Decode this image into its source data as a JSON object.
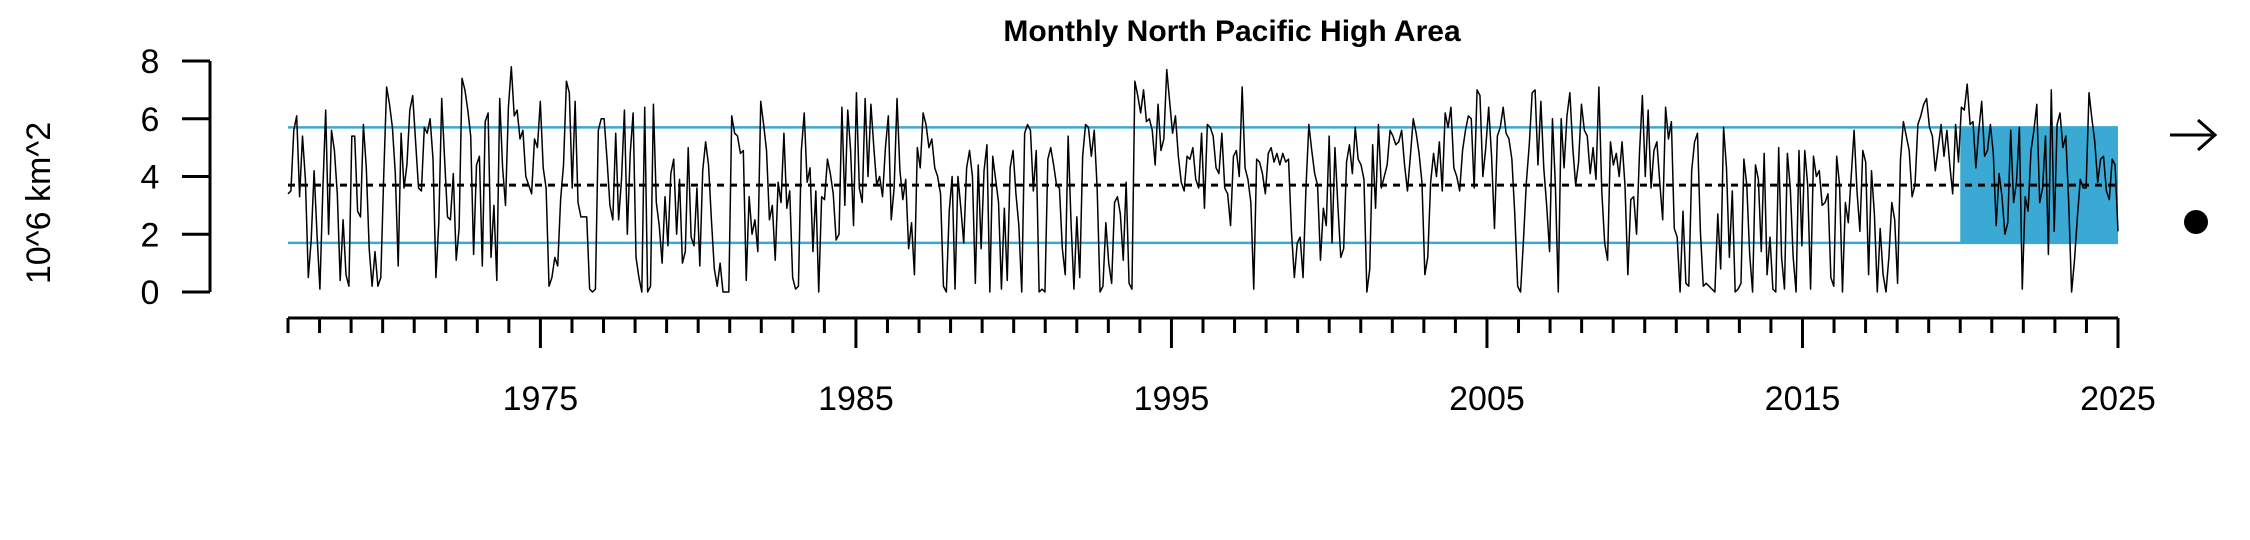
{
  "chart_data": {
    "type": "line",
    "title": "Monthly North Pacific High Area",
    "ylabel": "10^6 km^2",
    "xlabel": "",
    "xlim": [
      1967,
      2025
    ],
    "ylim": [
      0,
      8
    ],
    "x_ticks": [
      1975,
      1985,
      1995,
      2005,
      2015,
      2025
    ],
    "y_ticks": [
      0,
      2,
      4,
      6,
      8
    ],
    "mean": 3.7,
    "upper_band": 5.7,
    "lower_band": 1.7,
    "highlight_period": [
      2020,
      2025
    ],
    "colors": {
      "line": "#000000",
      "band": "#3aa9d4",
      "mean": "#000000"
    },
    "trend_indicator": "right-arrow-icon",
    "mean_indicator": "filled-circle-icon",
    "series": [
      {
        "x_start": 1967.0,
        "x_step": 0.08333,
        "values": [
          3.4,
          3.5,
          5.6,
          6.1,
          3.3,
          5.4,
          3.9,
          0.5,
          1.8,
          4.2,
          2.0,
          0.1,
          3.5,
          6.3,
          2.0,
          5.6,
          4.9,
          3.4,
          0.4,
          2.5,
          0.6,
          0.2,
          5.4,
          5.4,
          2.8,
          2.6,
          5.8,
          4.3,
          1.5,
          0.2,
          1.4,
          0.2,
          0.5,
          4.0,
          7.1,
          6.5,
          5.7,
          4.1,
          0.9,
          5.5,
          3.6,
          4.4,
          6.3,
          6.8,
          5.2,
          3.6,
          3.5,
          5.7,
          5.5,
          6.0,
          4.6,
          0.5,
          2.4,
          6.7,
          4.6,
          2.6,
          2.5,
          4.1,
          1.1,
          2.2,
          7.4,
          7.0,
          6.3,
          5.4,
          1.3,
          4.4,
          4.7,
          0.9,
          5.9,
          6.2,
          1.2,
          3.0,
          0.4,
          6.7,
          4.3,
          3.0,
          6.4,
          7.8,
          6.1,
          6.3,
          5.3,
          5.6,
          4.0,
          3.7,
          3.4,
          5.3,
          5.0,
          6.6,
          4.3,
          3.6,
          0.2,
          0.5,
          1.2,
          0.9,
          3.2,
          4.4,
          7.3,
          6.9,
          3.6,
          6.6,
          3.1,
          2.6,
          2.6,
          2.6,
          0.1,
          0.0,
          0.1,
          5.6,
          6.0,
          6.0,
          4.6,
          3.0,
          2.5,
          5.5,
          2.5,
          3.9,
          6.3,
          2.0,
          4.8,
          6.2,
          1.2,
          0.5,
          0.0,
          6.4,
          0.0,
          0.2,
          6.5,
          3.1,
          2.3,
          1.0,
          3.3,
          1.6,
          4.1,
          4.6,
          2.0,
          3.9,
          1.0,
          1.4,
          5.0,
          1.9,
          1.6,
          3.6,
          0.9,
          4.2,
          5.2,
          4.4,
          2.5,
          0.8,
          0.2,
          1.0,
          0.0,
          0.0,
          0.0,
          6.1,
          5.5,
          5.4,
          4.8,
          4.9,
          0.4,
          3.3,
          2.0,
          2.5,
          1.4,
          6.6,
          5.8,
          4.9,
          2.5,
          3.0,
          1.1,
          3.8,
          3.1,
          5.5,
          2.9,
          3.5,
          0.5,
          0.1,
          0.2,
          4.9,
          6.2,
          3.8,
          4.3,
          1.4,
          3.5,
          0.0,
          3.3,
          3.2,
          4.6,
          4.1,
          3.4,
          1.8,
          2.0,
          6.4,
          3.0,
          6.3,
          4.9,
          2.3,
          6.9,
          3.6,
          3.1,
          6.7,
          4.0,
          6.5,
          5.0,
          3.7,
          4.0,
          3.3,
          5.0,
          6.1,
          2.5,
          3.6,
          6.7,
          4.2,
          3.2,
          3.9,
          1.5,
          2.4,
          0.6,
          5.0,
          4.3,
          6.2,
          5.8,
          5.0,
          5.3,
          4.3,
          4.0,
          3.4,
          0.2,
          0.0,
          2.8,
          4.0,
          0.1,
          4.0,
          2.9,
          1.7,
          4.3,
          4.9,
          4.0,
          0.3,
          4.4,
          1.5,
          4.2,
          5.1,
          0.0,
          4.7,
          3.9,
          3.1,
          0.1,
          2.9,
          0.4,
          4.3,
          4.9,
          3.4,
          2.3,
          0.0,
          5.5,
          5.8,
          5.6,
          3.5,
          4.9,
          0.0,
          0.1,
          0.0,
          4.6,
          5.0,
          4.4,
          3.7,
          3.6,
          1.5,
          0.6,
          5.4,
          2.4,
          0.1,
          2.6,
          0.5,
          4.7,
          5.8,
          5.7,
          4.7,
          5.6,
          3.6,
          0.0,
          0.2,
          2.4,
          1.0,
          0.3,
          3.1,
          3.3,
          2.7,
          1.1,
          3.8,
          0.3,
          0.1,
          7.3,
          6.8,
          6.2,
          7.0,
          5.9,
          6.0,
          5.6,
          4.4,
          6.5,
          4.9,
          5.3,
          7.7,
          6.6,
          5.5,
          6.1,
          4.7,
          3.8,
          3.5,
          4.7,
          4.6,
          5.0,
          3.9,
          3.6,
          5.5,
          2.9,
          5.8,
          5.7,
          5.4,
          4.3,
          4.1,
          5.5,
          3.6,
          3.4,
          2.3,
          4.7,
          4.9,
          4.0,
          7.1,
          4.3,
          3.9,
          3.1,
          0.1,
          4.6,
          4.5,
          4.1,
          3.4,
          4.8,
          5.0,
          4.5,
          4.8,
          4.4,
          4.8,
          4.5,
          4.6,
          2.1,
          0.5,
          1.7,
          1.9,
          0.5,
          3.6,
          5.8,
          4.9,
          4.1,
          3.7,
          1.1,
          2.9,
          2.3,
          5.4,
          1.7,
          5.0,
          3.0,
          1.2,
          1.5,
          4.5,
          5.1,
          4.1,
          5.7,
          4.6,
          4.4,
          3.9,
          0.0,
          0.8,
          5.1,
          2.9,
          5.8,
          3.6,
          4.0,
          4.4,
          5.6,
          5.4,
          5.1,
          5.2,
          5.6,
          4.4,
          3.5,
          4.7,
          6.0,
          5.5,
          4.8,
          3.8,
          0.6,
          1.2,
          3.8,
          4.8,
          4.0,
          5.2,
          3.5,
          6.2,
          5.7,
          6.4,
          4.3,
          4.0,
          3.5,
          4.9,
          5.6,
          6.1,
          6.0,
          3.6,
          7.0,
          6.8,
          4.0,
          5.0,
          6.4,
          4.7,
          2.2,
          5.4,
          5.7,
          6.4,
          5.5,
          5.3,
          4.6,
          2.7,
          0.2,
          0.0,
          1.8,
          3.8,
          5.1,
          6.9,
          7.0,
          4.4,
          6.6,
          4.3,
          3.0,
          1.4,
          6.0,
          3.7,
          0.0,
          6.0,
          4.3,
          6.1,
          6.9,
          5.0,
          3.7,
          4.5,
          6.5,
          5.6,
          5.4,
          4.1,
          5.0,
          3.9,
          7.1,
          3.5,
          1.7,
          1.1,
          5.2,
          4.4,
          4.8,
          4.0,
          5.2,
          3.7,
          0.6,
          3.2,
          3.3,
          2.0,
          4.8,
          6.8,
          4.0,
          6.3,
          3.6,
          4.9,
          5.2,
          3.8,
          2.5,
          6.4,
          5.3,
          5.9,
          2.2,
          1.9,
          0.0,
          2.8,
          0.3,
          0.2,
          4.2,
          5.2,
          5.5,
          2.1,
          0.2,
          0.3,
          0.2,
          0.1,
          0.0,
          2.7,
          0.8,
          5.7,
          4.3,
          1.2,
          3.5,
          0.0,
          0.1,
          0.3,
          4.6,
          3.7,
          1.3,
          0.0,
          4.4,
          3.9,
          1.4,
          4.8,
          0.6,
          1.9,
          0.1,
          0.0,
          5.0,
          1.2,
          0.1,
          4.8,
          3.6,
          1.2,
          0.0,
          4.9,
          1.6,
          4.9,
          3.7,
          0.1,
          4.7,
          4.0,
          4.2,
          3.0,
          3.1,
          3.4,
          0.5,
          0.2,
          4.7,
          3.7,
          0.0,
          3.1,
          2.4,
          4.0,
          5.6,
          3.5,
          2.1,
          4.9,
          4.5,
          0.6,
          4.2,
          2.7,
          0.0,
          2.2,
          0.6,
          0.0,
          1.2,
          3.1,
          2.5,
          0.3,
          4.6,
          5.9,
          5.4,
          4.9,
          3.3,
          3.7,
          5.8,
          6.1,
          6.5,
          6.7,
          5.7,
          5.4,
          4.2,
          5.0,
          5.8,
          4.7,
          5.6,
          4.4,
          3.4,
          5.8,
          4.5,
          6.4,
          6.3,
          7.2,
          5.8,
          5.9,
          4.3,
          5.6,
          6.6,
          4.7,
          4.9,
          5.8,
          4.8,
          2.3,
          4.1,
          3.3,
          2.0,
          2.4,
          5.6,
          3.1,
          3.8,
          5.7,
          0.1,
          3.3,
          2.8,
          4.9,
          5.6,
          6.5,
          3.1,
          3.6,
          5.4,
          1.3,
          7.0,
          2.1,
          5.8,
          6.2,
          5.0,
          5.4,
          3.1,
          0.0,
          1.1,
          2.6,
          3.9,
          3.6,
          3.6,
          6.9,
          6.0,
          5.2,
          3.8,
          4.6,
          4.7,
          3.5,
          3.2,
          4.6,
          4.4,
          2.1
        ]
      }
    ]
  }
}
